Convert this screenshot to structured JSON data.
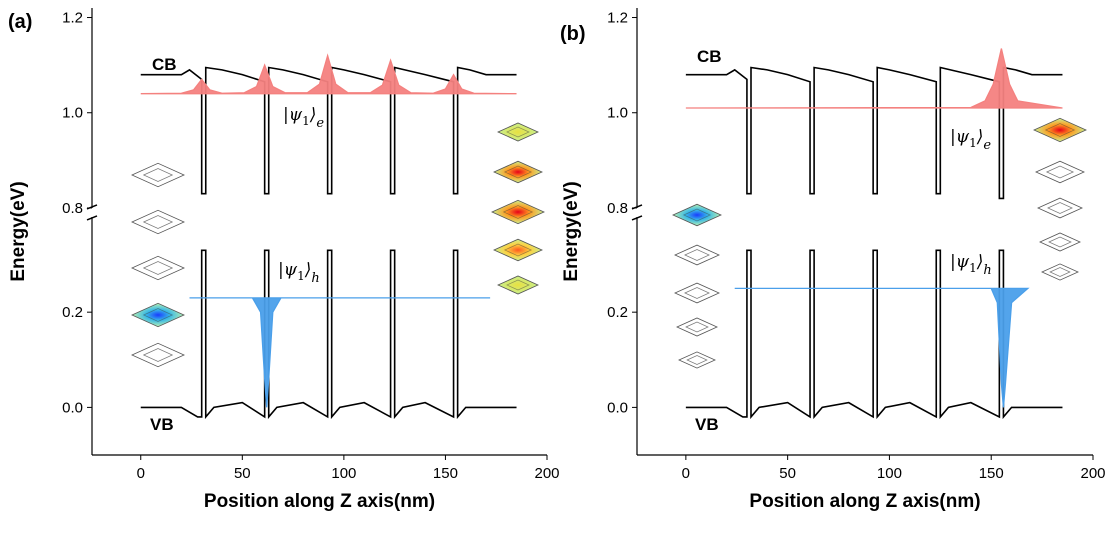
{
  "chart_data": [
    {
      "type": "line",
      "panel_label": "(a)",
      "x_label": "Position along Z axis(nm)",
      "y_label": "Energy(eV)",
      "cb_label": "CB",
      "vb_label": "VB",
      "electron_state": {
        "psi": "|ψ",
        "index": "1",
        "ket": "⟩",
        "sub": "e"
      },
      "hole_state": {
        "psi": "|ψ",
        "index": "1",
        "ket": "⟩",
        "sub": "h"
      },
      "xlim": [
        -24,
        200
      ],
      "xticks": [
        0,
        50,
        100,
        150,
        200
      ],
      "ylim": [
        -0.1,
        1.22
      ],
      "ybreak": [
        0.4,
        0.8
      ],
      "yticks": [
        {
          "value": 0.0,
          "label": "0.0"
        },
        0.2,
        0.8,
        {
          "value": 1.0,
          "label": "1.0"
        },
        1.2
      ],
      "series": [
        {
          "role": "band",
          "color": "#000000",
          "x": [
            0,
            20,
            24,
            30,
            30,
            32,
            32,
            40,
            50,
            61,
            61,
            63,
            63,
            70,
            80,
            92,
            92,
            94,
            94,
            100,
            110,
            123,
            123,
            125,
            125,
            130,
            140,
            154,
            154,
            156,
            156,
            162,
            170,
            185
          ],
          "values": [
            1.08,
            1.08,
            1.09,
            1.07,
            0.83,
            0.83,
            1.095,
            1.09,
            1.08,
            1.065,
            0.83,
            0.83,
            1.095,
            1.09,
            1.08,
            1.065,
            0.83,
            0.83,
            1.095,
            1.09,
            1.08,
            1.065,
            0.83,
            0.83,
            1.095,
            1.09,
            1.08,
            1.065,
            0.83,
            0.83,
            1.095,
            1.09,
            1.08,
            1.08
          ]
        },
        {
          "role": "band",
          "color": "#000000",
          "x": [
            0,
            20,
            28,
            30,
            30,
            32,
            32,
            36,
            50,
            61,
            61,
            63,
            63,
            67,
            80,
            92,
            92,
            94,
            94,
            98,
            110,
            123,
            123,
            125,
            125,
            129,
            140,
            154,
            154,
            156,
            156,
            160,
            170,
            185
          ],
          "values": [
            0,
            0,
            -0.02,
            -0.02,
            0.33,
            0.33,
            -0.02,
            0,
            0.01,
            -0.02,
            0.33,
            0.33,
            -0.02,
            0,
            0.01,
            -0.02,
            0.33,
            0.33,
            -0.02,
            0,
            0.01,
            -0.02,
            0.33,
            0.33,
            -0.02,
            0,
            0.01,
            -0.02,
            0.33,
            0.33,
            -0.02,
            0,
            0,
            0
          ]
        },
        {
          "role": "wave",
          "color": "#f4817f",
          "x": [
            0,
            20,
            26,
            30,
            34,
            40,
            51,
            57,
            61,
            65,
            71,
            82,
            88,
            92,
            96,
            102,
            113,
            119,
            123,
            127,
            133,
            144,
            150,
            154,
            158,
            164,
            185
          ],
          "values": [
            1.04,
            1.041,
            1.048,
            1.07,
            1.048,
            1.041,
            1.042,
            1.055,
            1.1,
            1.055,
            1.042,
            1.042,
            1.06,
            1.12,
            1.06,
            1.042,
            1.042,
            1.058,
            1.11,
            1.058,
            1.042,
            1.041,
            1.05,
            1.08,
            1.05,
            1.041,
            1.04
          ]
        },
        {
          "role": "wave",
          "color": "#4a9fea",
          "x": [
            24,
            55,
            59,
            61,
            62,
            63,
            65,
            69,
            172
          ],
          "values": [
            0.23,
            0.23,
            0.2,
            0.06,
            0,
            0.06,
            0.2,
            0.23,
            0.23
          ]
        }
      ]
    },
    {
      "type": "line",
      "panel_label": "(b)",
      "x_label": "Position along Z axis(nm)",
      "y_label": "Energy(eV)",
      "cb_label": "CB",
      "vb_label": "VB",
      "electron_state": {
        "psi": "|ψ",
        "index": "1",
        "ket": "⟩",
        "sub": "e"
      },
      "hole_state": {
        "psi": "|ψ",
        "index": "1",
        "ket": "⟩",
        "sub": "h"
      },
      "xlim": [
        -24,
        200
      ],
      "xticks": [
        0,
        50,
        100,
        150,
        200
      ],
      "ylim": [
        -0.1,
        1.22
      ],
      "ybreak": [
        0.4,
        0.8
      ],
      "yticks": [
        {
          "value": 0.0,
          "label": "0.0"
        },
        0.2,
        0.8,
        {
          "value": 1.0,
          "label": "1.0"
        },
        1.2
      ],
      "series": [
        {
          "role": "band",
          "color": "#000000",
          "x": [
            0,
            20,
            24,
            30,
            30,
            32,
            32,
            40,
            50,
            61,
            61,
            63,
            63,
            70,
            80,
            92,
            92,
            94,
            94,
            100,
            110,
            123,
            123,
            125,
            125,
            130,
            140,
            154,
            154,
            156,
            156,
            162,
            170,
            185
          ],
          "values": [
            1.08,
            1.08,
            1.09,
            1.07,
            0.83,
            0.83,
            1.095,
            1.09,
            1.08,
            1.065,
            0.83,
            0.83,
            1.095,
            1.09,
            1.08,
            1.065,
            0.83,
            0.83,
            1.095,
            1.09,
            1.08,
            1.065,
            0.83,
            0.83,
            1.095,
            1.09,
            1.08,
            1.065,
            0.82,
            0.82,
            1.095,
            1.09,
            1.08,
            1.08
          ]
        },
        {
          "role": "band",
          "color": "#000000",
          "x": [
            0,
            20,
            28,
            30,
            30,
            32,
            32,
            36,
            50,
            61,
            61,
            63,
            63,
            67,
            80,
            92,
            92,
            94,
            94,
            98,
            110,
            123,
            123,
            125,
            125,
            129,
            140,
            154,
            154,
            156,
            156,
            160,
            170,
            185
          ],
          "values": [
            0,
            0,
            -0.02,
            -0.02,
            0.33,
            0.33,
            -0.02,
            0,
            0.01,
            -0.02,
            0.33,
            0.33,
            -0.02,
            0,
            0.01,
            -0.02,
            0.33,
            0.33,
            -0.02,
            0,
            0.01,
            -0.02,
            0.33,
            0.33,
            -0.02,
            0,
            0.01,
            -0.02,
            0.33,
            0.33,
            -0.02,
            0,
            0,
            0
          ]
        },
        {
          "role": "wave",
          "color": "#f4817f",
          "x": [
            0,
            140,
            147,
            151,
            155,
            159,
            163,
            185
          ],
          "values": [
            1.01,
            1.011,
            1.025,
            1.06,
            1.135,
            1.06,
            1.025,
            1.01
          ]
        },
        {
          "role": "wave",
          "color": "#4a9fea",
          "x": [
            24,
            150,
            153,
            155,
            156,
            157,
            160,
            168
          ],
          "values": [
            0.25,
            0.25,
            0.22,
            0.05,
            0,
            0.05,
            0.22,
            0.25
          ]
        }
      ]
    }
  ]
}
